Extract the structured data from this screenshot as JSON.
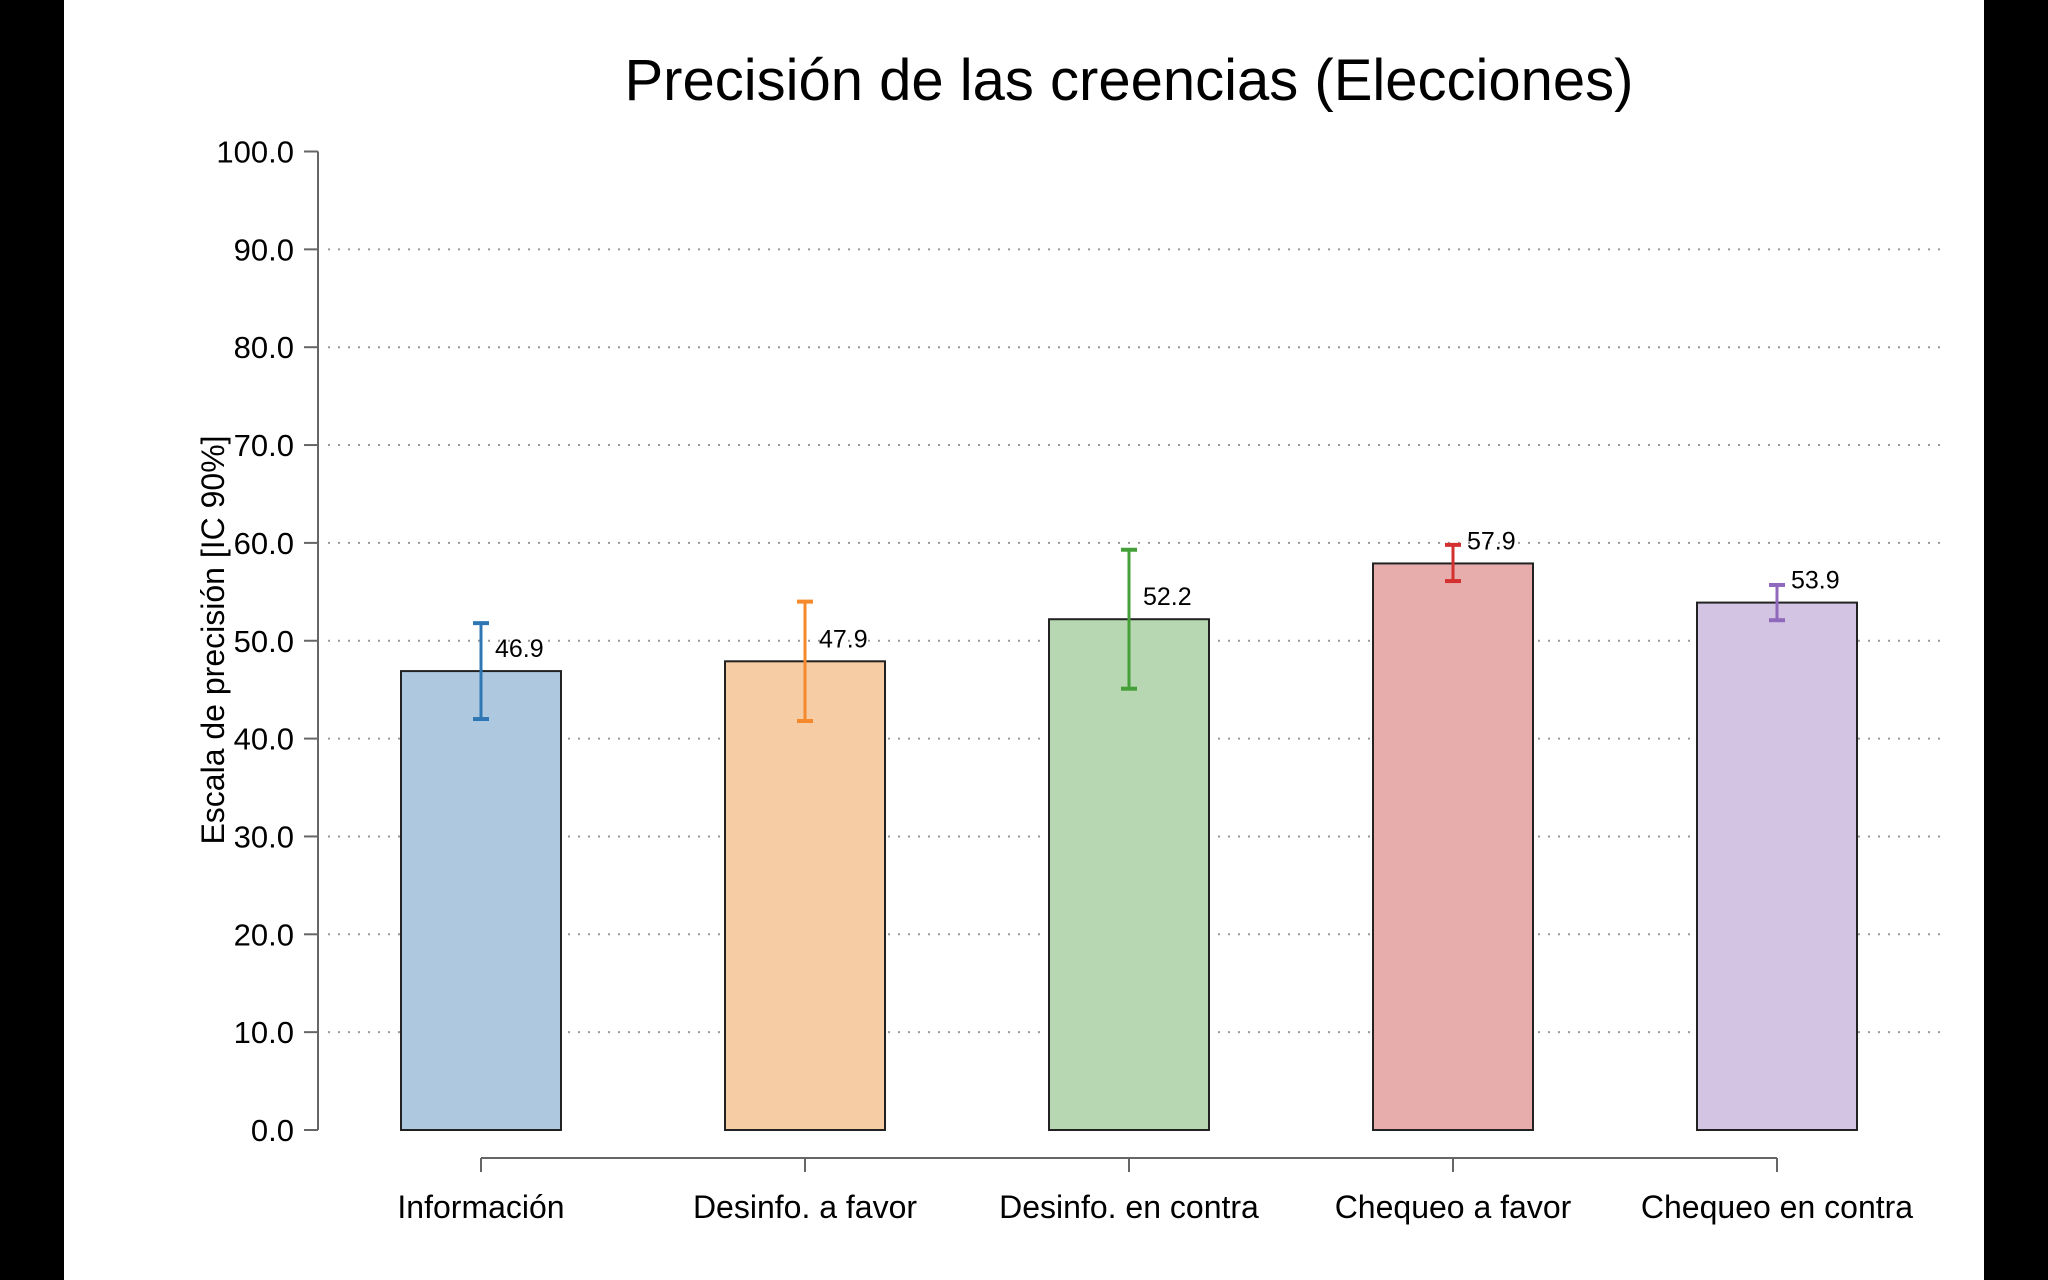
{
  "chart_data": {
    "type": "bar",
    "title": "Precisión de las creencias (Elecciones)",
    "xlabel": "",
    "ylabel": "Escala de precisión [IC 90%]",
    "ylim": [
      0,
      100
    ],
    "yticks": [
      "0.0",
      "10.0",
      "20.0",
      "30.0",
      "40.0",
      "50.0",
      "60.0",
      "70.0",
      "80.0",
      "90.0",
      "100.0"
    ],
    "grid": "horizontal dotted",
    "categories": [
      "Información",
      "Desinfo. a favor",
      "Desinfo. en contra",
      "Chequeo a favor",
      "Chequeo en contra"
    ],
    "values": [
      46.9,
      47.9,
      52.2,
      57.9,
      53.9
    ],
    "value_labels": [
      "46.9",
      "47.9",
      "52.2",
      "57.9",
      "53.9"
    ],
    "ci_low": [
      42.0,
      41.8,
      45.1,
      56.1,
      52.1
    ],
    "ci_high": [
      51.8,
      54.0,
      59.3,
      59.8,
      55.7
    ],
    "bar_colors": [
      "#adc8df",
      "#f6cca4",
      "#b6d7b1",
      "#e6adac",
      "#d3c4e3"
    ],
    "error_colors": [
      "#2f77b4",
      "#f5892b",
      "#45a03a",
      "#d3302f",
      "#9069bd"
    ]
  }
}
